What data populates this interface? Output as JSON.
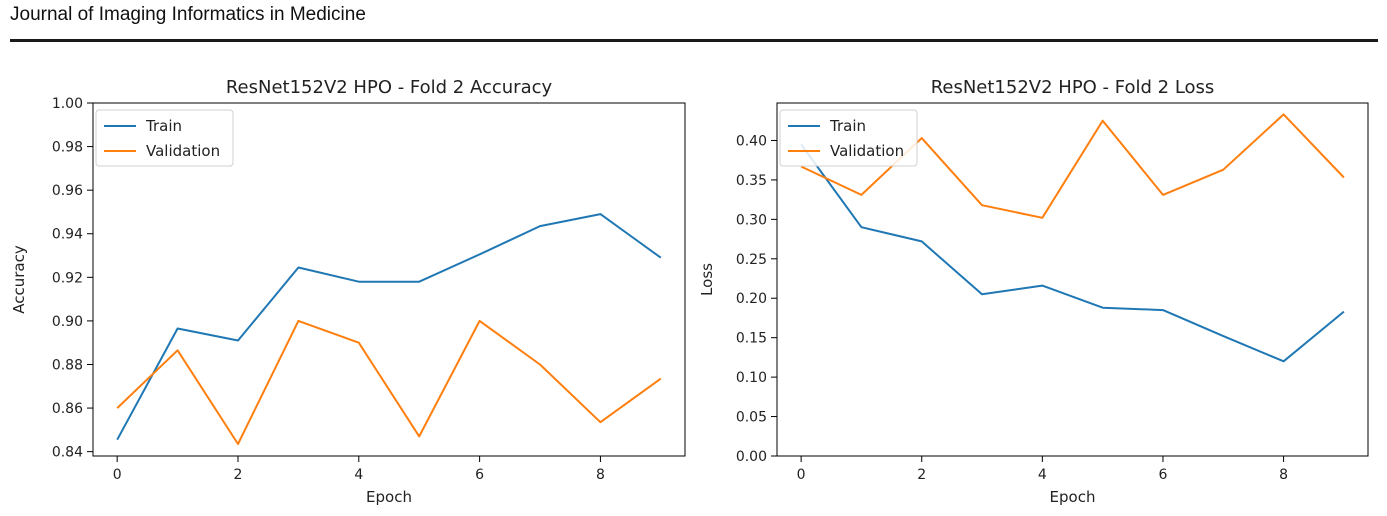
{
  "header": {
    "journal": "Journal of Imaging Informatics in Medicine"
  },
  "chart_data": [
    {
      "type": "line",
      "title": "ResNet152V2 HPO - Fold 2 Accuracy",
      "xlabel": "Epoch",
      "ylabel": "Accuracy",
      "x": [
        0,
        1,
        2,
        3,
        4,
        5,
        6,
        7,
        8,
        9
      ],
      "xlim": [
        -0.4,
        9.4
      ],
      "ylim": [
        0.838,
        1.0
      ],
      "xticks": [
        0,
        2,
        4,
        6,
        8
      ],
      "yticks": [
        0.84,
        0.86,
        0.88,
        0.9,
        0.92,
        0.94,
        0.96,
        0.98,
        1.0
      ],
      "ytick_labels": [
        "0.84",
        "0.86",
        "0.88",
        "0.90",
        "0.92",
        "0.94",
        "0.96",
        "0.98",
        "1.00"
      ],
      "grid": false,
      "legend": "top-left",
      "series": [
        {
          "name": "Train",
          "color": "#1f77b4",
          "values": [
            0.8455,
            0.8965,
            0.891,
            0.9245,
            0.918,
            0.918,
            0.9305,
            0.9435,
            0.949,
            0.929
          ]
        },
        {
          "name": "Validation",
          "color": "#ff7f0e",
          "values": [
            0.86,
            0.8865,
            0.8435,
            0.9,
            0.89,
            0.847,
            0.9,
            0.88,
            0.8535,
            0.8735
          ]
        }
      ]
    },
    {
      "type": "line",
      "title": "ResNet152V2 HPO - Fold 2 Loss",
      "xlabel": "Epoch",
      "ylabel": "Loss",
      "x": [
        0,
        1,
        2,
        3,
        4,
        5,
        6,
        7,
        8,
        9
      ],
      "xlim": [
        -0.4,
        9.4
      ],
      "ylim": [
        0.0,
        0.4475
      ],
      "xticks": [
        0,
        2,
        4,
        6,
        8
      ],
      "yticks": [
        0.0,
        0.05,
        0.1,
        0.15,
        0.2,
        0.25,
        0.3,
        0.35,
        0.4
      ],
      "ytick_labels": [
        "0.00",
        "0.05",
        "0.10",
        "0.15",
        "0.20",
        "0.25",
        "0.30",
        "0.35",
        "0.40"
      ],
      "grid": false,
      "legend": "top-left",
      "series": [
        {
          "name": "Train",
          "color": "#1f77b4",
          "values": [
            0.395,
            0.29,
            0.272,
            0.205,
            0.216,
            0.188,
            0.185,
            0.152,
            0.12,
            0.183
          ]
        },
        {
          "name": "Validation",
          "color": "#ff7f0e",
          "values": [
            0.367,
            0.331,
            0.403,
            0.318,
            0.302,
            0.425,
            0.331,
            0.363,
            0.433,
            0.353
          ]
        }
      ]
    }
  ]
}
